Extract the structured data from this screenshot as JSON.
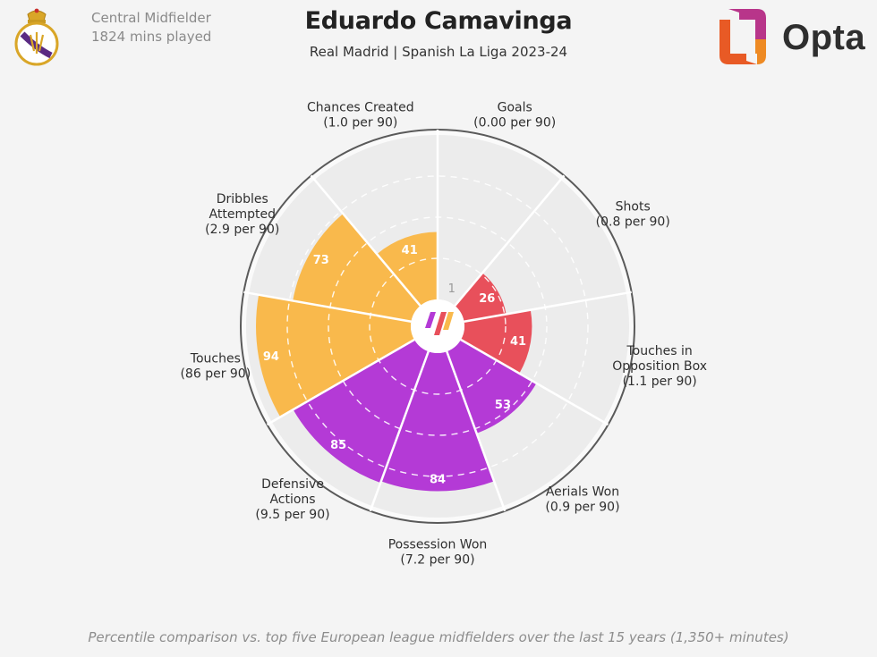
{
  "header": {
    "position": "Central Midfielder",
    "minutes": "1824 mins played",
    "title": "Eduardo Camavinga",
    "subtitle": "Real Madrid | Spanish La Liga 2023-24",
    "brand": "Opta"
  },
  "caption": "Percentile comparison vs. top five European league midfielders over the last 15 years (1,350+ minutes)",
  "colors": {
    "attacking": "#e8505b",
    "possession": "#f9b94c",
    "defending": "#b43ad6",
    "empty": "#ececec",
    "background": "#f4f4f4"
  },
  "icons": {
    "crest": "real-madrid-crest-icon",
    "brand": "opta-logo-icon",
    "center": "stats-perform-logo-icon"
  },
  "chart_data": {
    "type": "polar-bar",
    "scale": [
      0,
      100
    ],
    "reference_rings": [
      25,
      50,
      75
    ],
    "metrics": [
      {
        "name": "Goals",
        "value_label": "(0.00 per 90)",
        "percentile": 1,
        "group": "attacking"
      },
      {
        "name": "Shots",
        "value_label": "(0.8 per 90)",
        "percentile": 26,
        "group": "attacking"
      },
      {
        "name": "Touches in Opposition Box",
        "value_label": "(1.1 per 90)",
        "percentile": 41,
        "group": "attacking"
      },
      {
        "name": "Aerials Won",
        "value_label": "(0.9 per 90)",
        "percentile": 53,
        "group": "defending"
      },
      {
        "name": "Possession Won",
        "value_label": "(7.2 per 90)",
        "percentile": 84,
        "group": "defending"
      },
      {
        "name": "Defensive Actions",
        "value_label": "(9.5 per 90)",
        "percentile": 85,
        "group": "defending"
      },
      {
        "name": "Touches",
        "value_label": "(86 per 90)",
        "percentile": 94,
        "group": "possession"
      },
      {
        "name": "Dribbles Attempted",
        "value_label": "(2.9 per 90)",
        "percentile": 73,
        "group": "possession"
      },
      {
        "name": "Chances Created",
        "value_label": "(1.0 per 90)",
        "percentile": 41,
        "group": "possession"
      }
    ]
  }
}
